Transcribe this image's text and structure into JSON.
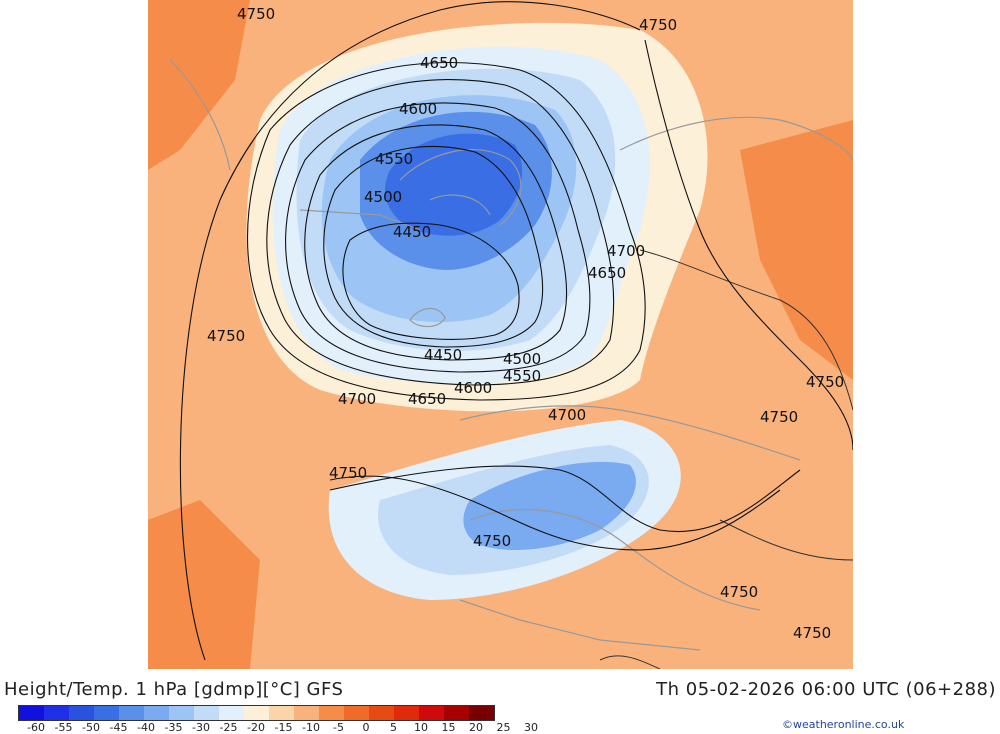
{
  "header": {
    "title": "Height/Temp. 1 hPa [gdmp][°C] GFS",
    "datetime": "Th 05-02-2026 06:00 UTC (06+288)"
  },
  "credit": "©weatheronline.co.uk",
  "colorbar": {
    "labels": [
      "-60",
      "-55",
      "-50",
      "-45",
      "-40",
      "-35",
      "-30",
      "-25",
      "-20",
      "-15",
      "-10",
      "-5",
      "0",
      "5",
      "10",
      "15",
      "20",
      "25",
      "30"
    ],
    "colors": [
      "#1010e0",
      "#2030e8",
      "#2a52e0",
      "#3a6ee4",
      "#5a90ea",
      "#7aaaf0",
      "#9cc4f4",
      "#c2dcf8",
      "#e2f0fc",
      "#fdf0d8",
      "#fbd4a8",
      "#f9b27c",
      "#f68c4a",
      "#f06a28",
      "#e84a14",
      "#e02a0a",
      "#d00a0a",
      "#a80000",
      "#780000"
    ]
  },
  "map": {
    "contour_labels": [
      {
        "text": "4750"
      },
      {
        "text": "4750"
      },
      {
        "text": "4650"
      },
      {
        "text": "4600"
      },
      {
        "text": "4550"
      },
      {
        "text": "4500"
      },
      {
        "text": "4450"
      },
      {
        "text": "4700"
      },
      {
        "text": "4650"
      },
      {
        "text": "4750"
      },
      {
        "text": "4450"
      },
      {
        "text": "4500"
      },
      {
        "text": "4550"
      },
      {
        "text": "4600"
      },
      {
        "text": "4700"
      },
      {
        "text": "4650"
      },
      {
        "text": "4700"
      },
      {
        "text": "4750"
      },
      {
        "text": "4750"
      },
      {
        "text": "4750"
      },
      {
        "text": "4750"
      },
      {
        "text": "4750"
      },
      {
        "text": "4750"
      }
    ]
  }
}
